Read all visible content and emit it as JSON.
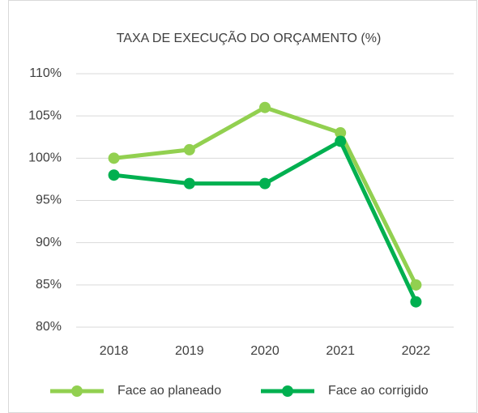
{
  "chart_data": {
    "type": "line",
    "title": "TAXA DE EXECUÇÃO DO ORÇAMENTO (%)",
    "categories": [
      "2018",
      "2019",
      "2020",
      "2021",
      "2022"
    ],
    "series": [
      {
        "name": "Face ao planeado",
        "color": "#92d050",
        "values": [
          100,
          101,
          106,
          103,
          85
        ]
      },
      {
        "name": "Face ao corrigido",
        "color": "#00b050",
        "values": [
          98,
          97,
          97,
          102,
          83
        ]
      }
    ],
    "ylim": [
      80,
      110
    ],
    "yticks": [
      {
        "value": 80,
        "label": "80%"
      },
      {
        "value": 85,
        "label": "85%"
      },
      {
        "value": 90,
        "label": "90%"
      },
      {
        "value": 95,
        "label": "95%"
      },
      {
        "value": 100,
        "label": "100%"
      },
      {
        "value": 105,
        "label": "105%"
      },
      {
        "value": 110,
        "label": "110%"
      }
    ],
    "grid": true,
    "legend": "bottom"
  }
}
